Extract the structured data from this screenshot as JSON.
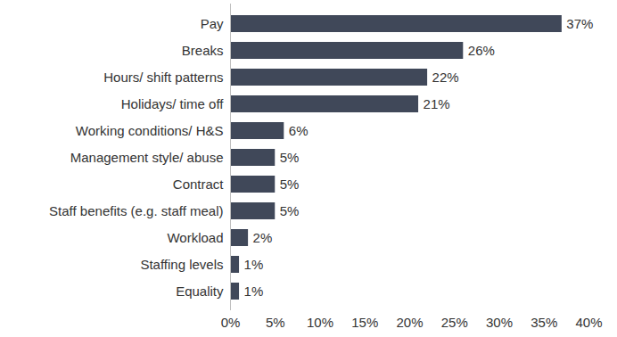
{
  "chart_data": {
    "type": "bar",
    "orientation": "horizontal",
    "categories": [
      "Pay",
      "Breaks",
      "Hours/ shift patterns",
      "Holidays/ time off",
      "Working conditions/ H&S",
      "Management style/ abuse",
      "Contract",
      "Staff benefits (e.g. staff meal)",
      "Workload",
      "Staffing levels",
      "Equality"
    ],
    "values": [
      37,
      26,
      22,
      21,
      6,
      5,
      5,
      5,
      2,
      1,
      1
    ],
    "value_labels": [
      "37%",
      "26%",
      "22%",
      "21%",
      "6%",
      "5%",
      "5%",
      "5%",
      "2%",
      "1%",
      "1%"
    ],
    "color": "#404859",
    "data_labels": true,
    "grid": false,
    "xlim": [
      0,
      40
    ],
    "xticks": [
      {
        "value": 0,
        "label": "0%"
      },
      {
        "value": 5,
        "label": "5%"
      },
      {
        "value": 10,
        "label": "10%"
      },
      {
        "value": 15,
        "label": "15%"
      },
      {
        "value": 20,
        "label": "20%"
      },
      {
        "value": 25,
        "label": "25%"
      },
      {
        "value": 30,
        "label": "30%"
      },
      {
        "value": 35,
        "label": "35%"
      },
      {
        "value": 40,
        "label": "40%"
      }
    ]
  }
}
